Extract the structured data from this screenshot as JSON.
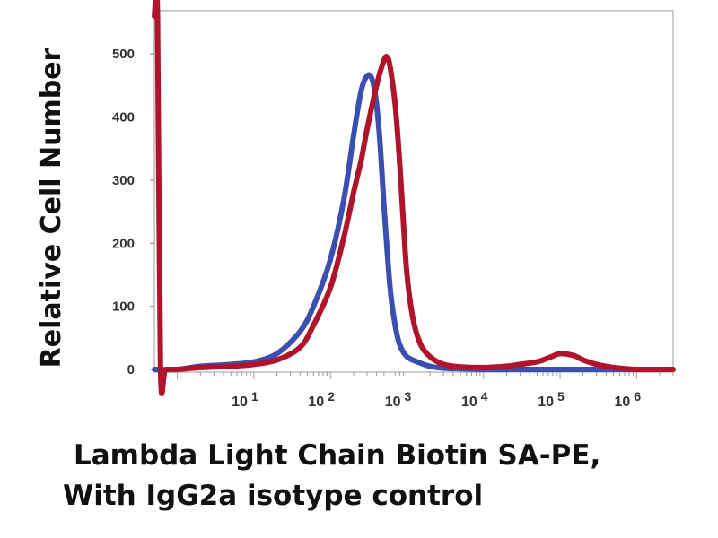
{
  "chart_data": {
    "type": "line",
    "title": "",
    "xlabel": "Lambda Light Chain Biotin SA-PE,",
    "xlabel_line2": "With IgG2a isotype control",
    "ylabel": "Relative Cell Number",
    "xscale": "log",
    "xlim": [
      0.5,
      3000000
    ],
    "ylim": [
      0,
      560
    ],
    "grid": false,
    "legend": "none",
    "yticks": [
      0,
      100,
      200,
      300,
      400,
      500
    ],
    "xticks": [
      {
        "base": "10",
        "exp": "1",
        "value": 10
      },
      {
        "base": "10",
        "exp": "2",
        "value": 100
      },
      {
        "base": "10",
        "exp": "3",
        "value": 1000
      },
      {
        "base": "10",
        "exp": "4",
        "value": 10000
      },
      {
        "base": "10",
        "exp": "5",
        "value": 100000
      },
      {
        "base": "10",
        "exp": "6",
        "value": 1000000
      }
    ],
    "series": [
      {
        "color": "#3b4fb0",
        "x": [
          0.5,
          1,
          2,
          5,
          10,
          20,
          40,
          60,
          100,
          150,
          200,
          250,
          300,
          350,
          400,
          450,
          500,
          600,
          700,
          800,
          1000,
          1500,
          2000,
          3000,
          5000,
          10000,
          20000,
          50000,
          100000,
          200000,
          500000,
          1000000,
          3000000
        ],
        "y": [
          0,
          0,
          5,
          8,
          12,
          25,
          60,
          100,
          175,
          270,
          370,
          440,
          465,
          460,
          420,
          350,
          260,
          130,
          70,
          40,
          20,
          10,
          5,
          2,
          1,
          0,
          0,
          0,
          0,
          0,
          0,
          0,
          0
        ]
      },
      {
        "color": "#b0142a",
        "x": [
          0.5,
          0.55,
          0.6,
          0.7,
          1,
          2,
          5,
          10,
          20,
          40,
          60,
          100,
          150,
          200,
          250,
          300,
          400,
          500,
          550,
          600,
          700,
          800,
          900,
          1000,
          1200,
          1500,
          2000,
          3000,
          5000,
          10000,
          20000,
          30000,
          50000,
          70000,
          100000,
          150000,
          200000,
          300000,
          500000,
          1000000,
          3000000
        ],
        "y": [
          560,
          560,
          2,
          0,
          0,
          3,
          5,
          8,
          15,
          35,
          70,
          130,
          210,
          280,
          330,
          380,
          450,
          490,
          495,
          480,
          420,
          330,
          230,
          150,
          80,
          40,
          20,
          8,
          4,
          3,
          5,
          8,
          12,
          18,
          25,
          22,
          15,
          8,
          3,
          0,
          0
        ]
      }
    ]
  }
}
